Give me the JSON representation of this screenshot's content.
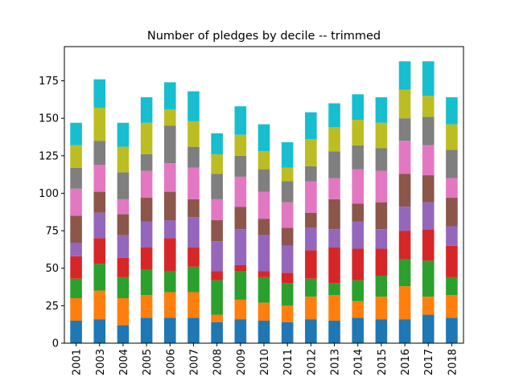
{
  "chart_data": {
    "type": "bar",
    "stacked": true,
    "title": "Number of pledges by decile -- trimmed",
    "xlabel": "",
    "ylabel": "",
    "ylim": [
      0,
      197.8
    ],
    "yticks": [
      0,
      25,
      50,
      75,
      100,
      125,
      150,
      175
    ],
    "legend": "none",
    "grid": false,
    "categories": [
      "2001",
      "2003",
      "2004",
      "2005",
      "2006",
      "2007",
      "2008",
      "2009",
      "2010",
      "2011",
      "2012",
      "2013",
      "2014",
      "2015",
      "2016",
      "2017",
      "2018"
    ],
    "series": [
      {
        "color": "#1f77b4",
        "values": [
          15,
          16,
          12,
          17,
          17,
          17,
          14,
          16,
          15,
          14,
          16,
          15,
          17,
          16,
          16,
          19,
          17
        ]
      },
      {
        "color": "#ff7f0e",
        "values": [
          15,
          19,
          18,
          15,
          17,
          17,
          5,
          13,
          12,
          11,
          15,
          17,
          11,
          15,
          22,
          12,
          15
        ]
      },
      {
        "color": "#2ca02c",
        "values": [
          13,
          18,
          14,
          17,
          14,
          17,
          23,
          19,
          17,
          15,
          12,
          8,
          14,
          14,
          18,
          24,
          12
        ]
      },
      {
        "color": "#d62728",
        "values": [
          15,
          17,
          13,
          15,
          22,
          13,
          6,
          4,
          4,
          7,
          19,
          24,
          21,
          18,
          19,
          21,
          21
        ]
      },
      {
        "color": "#9467bd",
        "values": [
          9,
          17,
          15,
          17,
          12,
          20,
          20,
          24,
          24,
          18,
          15,
          12,
          18,
          13,
          16,
          18,
          13
        ]
      },
      {
        "color": "#8c564b",
        "values": [
          18,
          14,
          14,
          16,
          19,
          12,
          14,
          15,
          11,
          12,
          10,
          20,
          12,
          18,
          22,
          18,
          19
        ]
      },
      {
        "color": "#e377c2",
        "values": [
          18,
          18,
          10,
          18,
          19,
          21,
          14,
          20,
          18,
          17,
          21,
          14,
          23,
          21,
          22,
          20,
          13
        ]
      },
      {
        "color": "#7f7f7f",
        "values": [
          14,
          16,
          18,
          11,
          25,
          14,
          17,
          14,
          15,
          14,
          10,
          18,
          16,
          15,
          15,
          19,
          19
        ]
      },
      {
        "color": "#bcbd22",
        "values": [
          15,
          22,
          17,
          21,
          11,
          17,
          13,
          14,
          12,
          9,
          18,
          16,
          17,
          17,
          19,
          14,
          17
        ]
      },
      {
        "color": "#17becf",
        "values": [
          15,
          19,
          16,
          17,
          18,
          20,
          14,
          19,
          18,
          17,
          18,
          16,
          17,
          17,
          19,
          23,
          18
        ]
      }
    ]
  }
}
